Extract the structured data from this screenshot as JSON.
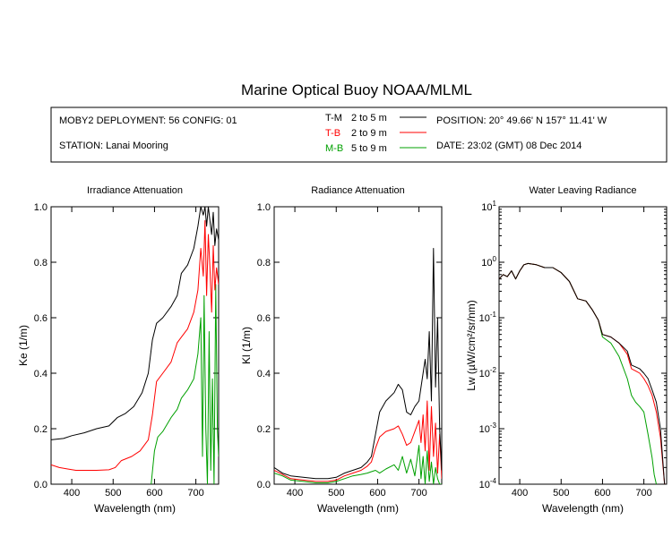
{
  "title": "Marine Optical Buoy NOAA/MLML",
  "header": {
    "deployment": "MOBY2 DEPLOYMENT: 56 CONFIG: 01",
    "station": "STATION: Lanai Mooring",
    "position": "POSITION: 20° 49.66' N   157° 11.41' W",
    "date": "DATE: 23:02 (GMT) 08 Dec 2014",
    "legend": [
      {
        "key": "T-M",
        "range": "2 to 5  m",
        "color": "#000000"
      },
      {
        "key": "T-B",
        "range": "2 to 9  m",
        "color": "#ff0000"
      },
      {
        "key": "M-B",
        "range": "5 to 9  m",
        "color": "#00a000"
      }
    ]
  },
  "chart_data": [
    {
      "type": "line",
      "title": "Irradiance Attenuation",
      "xlabel": "Wavelength (nm)",
      "ylabel": "Ke  (1/m)",
      "xlim": [
        350,
        755
      ],
      "ylim": [
        0,
        1
      ],
      "xticks": [
        400,
        500,
        600,
        700
      ],
      "yticks": [
        0.0,
        0.2,
        0.4,
        0.6,
        0.8,
        1.0
      ],
      "ytick_labels": [
        "0.0",
        "0.2",
        "0.4",
        "0.6",
        "0.8",
        "1.0"
      ],
      "series": [
        {
          "name": "T-M",
          "color": "#000000",
          "x": [
            350,
            380,
            400,
            430,
            460,
            490,
            510,
            530,
            550,
            570,
            585,
            595,
            605,
            620,
            640,
            655,
            665,
            680,
            695,
            705,
            712,
            718,
            722,
            726,
            730,
            734,
            738,
            742,
            746,
            750,
            755
          ],
          "y": [
            0.16,
            0.165,
            0.175,
            0.185,
            0.2,
            0.21,
            0.24,
            0.255,
            0.28,
            0.33,
            0.4,
            0.52,
            0.58,
            0.6,
            0.64,
            0.68,
            0.76,
            0.79,
            0.85,
            0.93,
            1.0,
            0.97,
            1.0,
            0.93,
            1.0,
            0.95,
            0.9,
            0.98,
            0.86,
            0.92,
            0.88
          ]
        },
        {
          "name": "T-B",
          "color": "#ff0000",
          "x": [
            350,
            370,
            390,
            410,
            430,
            460,
            490,
            505,
            520,
            545,
            565,
            585,
            595,
            605,
            620,
            640,
            655,
            665,
            680,
            695,
            705,
            712,
            718,
            722,
            726,
            730,
            734,
            738,
            742,
            746,
            750,
            755
          ],
          "y": [
            0.07,
            0.06,
            0.055,
            0.05,
            0.05,
            0.05,
            0.052,
            0.06,
            0.085,
            0.1,
            0.12,
            0.16,
            0.25,
            0.37,
            0.4,
            0.44,
            0.51,
            0.53,
            0.56,
            0.62,
            0.7,
            0.85,
            0.75,
            0.95,
            0.68,
            0.9,
            0.78,
            0.62,
            0.86,
            0.7,
            0.78,
            0.72
          ]
        },
        {
          "name": "M-B",
          "color": "#00a000",
          "x": [
            592,
            600,
            608,
            620,
            640,
            655,
            665,
            680,
            695,
            705,
            712,
            716,
            720,
            724,
            728,
            732,
            736,
            740,
            744,
            748,
            752,
            755
          ],
          "y": [
            0.0,
            0.12,
            0.17,
            0.19,
            0.24,
            0.27,
            0.31,
            0.34,
            0.38,
            0.47,
            0.6,
            0.1,
            0.68,
            0.2,
            0.0,
            0.55,
            0.05,
            0.38,
            0.0,
            0.72,
            0.2,
            0.1
          ]
        }
      ]
    },
    {
      "type": "line",
      "title": "Radiance Attenuation",
      "xlabel": "Wavelength (nm)",
      "ylabel": "Kl  (1/m)",
      "xlim": [
        350,
        755
      ],
      "ylim": [
        0,
        1
      ],
      "xticks": [
        400,
        500,
        600,
        700
      ],
      "yticks": [
        0.0,
        0.2,
        0.4,
        0.6,
        0.8,
        1.0
      ],
      "ytick_labels": [
        "0.0",
        "0.2",
        "0.4",
        "0.6",
        "0.8",
        "1.0"
      ],
      "series": [
        {
          "name": "T-M",
          "color": "#000000",
          "x": [
            350,
            370,
            390,
            420,
            450,
            480,
            500,
            520,
            540,
            560,
            575,
            585,
            595,
            605,
            620,
            640,
            650,
            660,
            670,
            680,
            690,
            700,
            705,
            710,
            715,
            720,
            725,
            730,
            735,
            740,
            745,
            750,
            755
          ],
          "y": [
            0.06,
            0.04,
            0.03,
            0.025,
            0.02,
            0.02,
            0.025,
            0.04,
            0.05,
            0.06,
            0.08,
            0.1,
            0.18,
            0.26,
            0.3,
            0.33,
            0.36,
            0.34,
            0.26,
            0.25,
            0.28,
            0.3,
            0.35,
            0.4,
            0.45,
            0.38,
            0.55,
            0.3,
            0.85,
            0.35,
            0.6,
            0.2,
            0.05
          ]
        },
        {
          "name": "T-B",
          "color": "#ff0000",
          "x": [
            350,
            370,
            390,
            420,
            450,
            480,
            500,
            520,
            540,
            560,
            575,
            585,
            595,
            605,
            620,
            640,
            650,
            660,
            670,
            680,
            690,
            700,
            705,
            710,
            715,
            720,
            725,
            730,
            735,
            740,
            745,
            750,
            755
          ],
          "y": [
            0.05,
            0.035,
            0.02,
            0.015,
            0.01,
            0.01,
            0.015,
            0.03,
            0.04,
            0.05,
            0.065,
            0.08,
            0.13,
            0.17,
            0.19,
            0.2,
            0.21,
            0.18,
            0.14,
            0.15,
            0.19,
            0.23,
            0.15,
            0.25,
            0.12,
            0.3,
            0.05,
            0.28,
            0.1,
            0.22,
            0.04,
            0.18,
            0.02
          ]
        },
        {
          "name": "M-B",
          "color": "#00a000",
          "x": [
            350,
            370,
            390,
            420,
            450,
            480,
            500,
            520,
            540,
            560,
            575,
            585,
            595,
            605,
            620,
            640,
            650,
            660,
            670,
            680,
            690,
            700,
            705,
            710,
            715,
            720,
            725,
            730,
            735,
            740,
            745,
            750,
            755
          ],
          "y": [
            0.04,
            0.03,
            0.015,
            0.01,
            0.005,
            0.005,
            0.01,
            0.02,
            0.03,
            0.035,
            0.04,
            0.045,
            0.05,
            0.04,
            0.055,
            0.07,
            0.05,
            0.1,
            0.04,
            0.09,
            0.03,
            0.14,
            0.02,
            0.1,
            0.0,
            0.12,
            0.01,
            0.08,
            0.0,
            0.06,
            0.02,
            0.0,
            0.0
          ]
        }
      ]
    },
    {
      "type": "line",
      "title": "Water Leaving Radiance",
      "xlabel": "Wavelength (nm)",
      "ylabel": "Lw  (µW/cm²/sr/nm)",
      "xlim": [
        350,
        755
      ],
      "ylim": [
        0.0001,
        10
      ],
      "yscale": "log",
      "xticks": [
        400,
        500,
        600,
        700
      ],
      "yticks": [
        10,
        1,
        0.1,
        0.01,
        0.001,
        0.0001
      ],
      "ytick_labels": [
        "10^1",
        "10^0",
        "10^-1",
        "10^-2",
        "10^-3",
        "10^-4"
      ],
      "series": [
        {
          "name": "T-M",
          "color": "#000000",
          "x": [
            350,
            360,
            370,
            380,
            390,
            400,
            410,
            420,
            440,
            460,
            480,
            500,
            520,
            540,
            560,
            575,
            590,
            600,
            620,
            640,
            660,
            670,
            680,
            690,
            700,
            710,
            720,
            730,
            740,
            750
          ],
          "y": [
            0.5,
            0.6,
            0.55,
            0.7,
            0.5,
            0.7,
            0.9,
            0.95,
            0.9,
            0.8,
            0.8,
            0.65,
            0.45,
            0.22,
            0.2,
            0.14,
            0.09,
            0.05,
            0.045,
            0.035,
            0.025,
            0.014,
            0.013,
            0.012,
            0.01,
            0.008,
            0.005,
            0.003,
            0.001,
            0.0001
          ]
        },
        {
          "name": "T-B",
          "color": "#ff0000",
          "x": [
            350,
            360,
            370,
            380,
            390,
            400,
            410,
            420,
            440,
            460,
            480,
            500,
            520,
            540,
            560,
            575,
            590,
            600,
            620,
            640,
            660,
            670,
            680,
            690,
            700,
            710,
            720,
            730,
            740,
            750
          ],
          "y": [
            0.5,
            0.6,
            0.55,
            0.7,
            0.5,
            0.7,
            0.9,
            0.95,
            0.9,
            0.8,
            0.8,
            0.65,
            0.45,
            0.22,
            0.2,
            0.14,
            0.09,
            0.05,
            0.045,
            0.035,
            0.022,
            0.012,
            0.011,
            0.01,
            0.008,
            0.006,
            0.004,
            0.002,
            0.0007,
            0.0001
          ]
        },
        {
          "name": "M-B",
          "color": "#00a000",
          "x": [
            350,
            360,
            370,
            380,
            390,
            400,
            410,
            420,
            440,
            460,
            480,
            500,
            520,
            540,
            560,
            575,
            590,
            600,
            620,
            640,
            660,
            670,
            680,
            690,
            700,
            710,
            720,
            725,
            730
          ],
          "y": [
            0.5,
            0.6,
            0.55,
            0.7,
            0.5,
            0.7,
            0.9,
            0.95,
            0.9,
            0.8,
            0.8,
            0.65,
            0.45,
            0.22,
            0.2,
            0.14,
            0.09,
            0.045,
            0.035,
            0.02,
            0.008,
            0.004,
            0.003,
            0.0025,
            0.002,
            0.0008,
            0.0003,
            0.00015,
            0.0001
          ]
        }
      ]
    }
  ]
}
